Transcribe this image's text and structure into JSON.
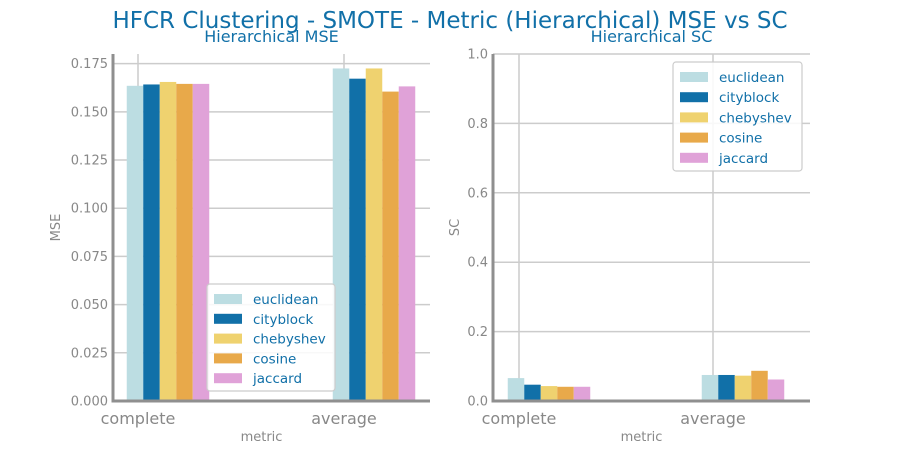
{
  "title": "HFCR Clustering - SMOTE - Metric (Hierarchical) MSE vs SC",
  "chart_data": [
    {
      "type": "bar",
      "title": "Hierarchical MSE",
      "xlabel": "metric",
      "ylabel": "MSE",
      "categories": [
        "complete",
        "average"
      ],
      "ylim": [
        0,
        0.18
      ],
      "yticks": [
        "0.000",
        "0.025",
        "0.050",
        "0.075",
        "0.100",
        "0.125",
        "0.150",
        "0.175"
      ],
      "grid": true,
      "legend_position": "lower-right",
      "series": [
        {
          "name": "euclidean",
          "color": "#bcdde2",
          "values": [
            0.1635,
            0.1725
          ]
        },
        {
          "name": "cityblock",
          "color": "#1170a8",
          "values": [
            0.1642,
            0.1672
          ]
        },
        {
          "name": "chebyshev",
          "color": "#efd26f",
          "values": [
            0.1655,
            0.1725
          ]
        },
        {
          "name": "cosine",
          "color": "#e8a94a",
          "values": [
            0.1645,
            0.1605
          ]
        },
        {
          "name": "jaccard",
          "color": "#e0a2d8",
          "values": [
            0.1645,
            0.1632
          ]
        }
      ]
    },
    {
      "type": "bar",
      "title": "Hierarchical SC",
      "xlabel": "metric",
      "ylabel": "SC",
      "categories": [
        "complete",
        "average"
      ],
      "ylim": [
        0,
        1.0
      ],
      "yticks": [
        "0.0",
        "0.2",
        "0.4",
        "0.6",
        "0.8",
        "1.0"
      ],
      "grid": true,
      "legend_position": "upper-right",
      "series": [
        {
          "name": "euclidean",
          "color": "#bcdde2",
          "values": [
            0.066,
            0.075
          ]
        },
        {
          "name": "cityblock",
          "color": "#1170a8",
          "values": [
            0.047,
            0.075
          ]
        },
        {
          "name": "chebyshev",
          "color": "#efd26f",
          "values": [
            0.043,
            0.073
          ]
        },
        {
          "name": "cosine",
          "color": "#e8a94a",
          "values": [
            0.041,
            0.087
          ]
        },
        {
          "name": "jaccard",
          "color": "#e0a2d8",
          "values": [
            0.041,
            0.062
          ]
        }
      ]
    }
  ]
}
